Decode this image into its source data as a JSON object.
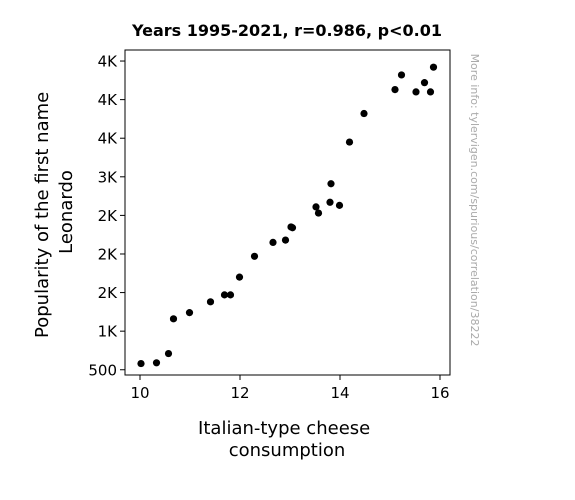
{
  "chart_data": {
    "type": "scatter",
    "title": "Years 1995-2021, r=0.986, p<0.01",
    "xlabel": [
      "Italian-type cheese",
      "consumption"
    ],
    "ylabel": [
      "Popularity of the first name",
      "Leonardo"
    ],
    "xlim": [
      9.7,
      16.2
    ],
    "ylim": [
      432,
      4643
    ],
    "x_ticks": [
      {
        "value": 10,
        "label": "10"
      },
      {
        "value": 12,
        "label": "12"
      },
      {
        "value": 14,
        "label": "14"
      },
      {
        "value": 16,
        "label": "16"
      }
    ],
    "y_ticks": [
      {
        "value": 500,
        "label": "500"
      },
      {
        "value": 1000,
        "label": "1K"
      },
      {
        "value": 1500,
        "label": "2K"
      },
      {
        "value": 2000,
        "label": "2K"
      },
      {
        "value": 2500,
        "label": "2K"
      },
      {
        "value": 3000,
        "label": "3K"
      },
      {
        "value": 3500,
        "label": "4K"
      },
      {
        "value": 4000,
        "label": "4K"
      },
      {
        "value": 4500,
        "label": "4K"
      }
    ],
    "grid": false,
    "point_color": "#000000",
    "points": [
      {
        "x": 10.02,
        "y": 580
      },
      {
        "x": 10.33,
        "y": 590
      },
      {
        "x": 10.57,
        "y": 710
      },
      {
        "x": 10.67,
        "y": 1160
      },
      {
        "x": 10.99,
        "y": 1240
      },
      {
        "x": 11.41,
        "y": 1380
      },
      {
        "x": 11.69,
        "y": 1470
      },
      {
        "x": 11.81,
        "y": 1470
      },
      {
        "x": 11.99,
        "y": 1700
      },
      {
        "x": 12.29,
        "y": 1970
      },
      {
        "x": 12.66,
        "y": 2150
      },
      {
        "x": 12.91,
        "y": 2180
      },
      {
        "x": 13.02,
        "y": 2350
      },
      {
        "x": 13.05,
        "y": 2340
      },
      {
        "x": 13.52,
        "y": 2610
      },
      {
        "x": 13.57,
        "y": 2530
      },
      {
        "x": 13.8,
        "y": 2670
      },
      {
        "x": 13.82,
        "y": 2910
      },
      {
        "x": 13.99,
        "y": 2630
      },
      {
        "x": 14.19,
        "y": 3450
      },
      {
        "x": 14.48,
        "y": 3820
      },
      {
        "x": 15.1,
        "y": 4130
      },
      {
        "x": 15.23,
        "y": 4320
      },
      {
        "x": 15.52,
        "y": 4100
      },
      {
        "x": 15.69,
        "y": 4220
      },
      {
        "x": 15.81,
        "y": 4100
      },
      {
        "x": 15.87,
        "y": 4420
      }
    ]
  },
  "source_note": "More info: tylervigen.com/spurious/correlation/38222"
}
